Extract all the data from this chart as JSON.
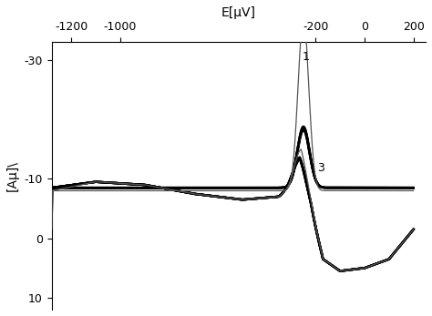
{
  "xlabel": "E[μV]",
  "ylabel": "[Aμ]\\",
  "x_top_ticks": [
    -1200,
    -1000,
    -200,
    0,
    200
  ],
  "x_top_labels": [
    "-1200",
    "-1000",
    "-200",
    "0",
    "200"
  ],
  "y_ticks": [
    -30,
    -10,
    0,
    10
  ],
  "y_labels": [
    "-30",
    "-10",
    "0",
    "10"
  ],
  "xlim_left": -1280,
  "xlim_right": 250,
  "ylim_bottom": 12,
  "ylim_top": -33,
  "bg_color": "#ffffff",
  "thin_color": "#555555",
  "thick_color": "#000000",
  "ann1_x": -255,
  "ann1_y": -29.5,
  "ann1_text": "1",
  "ann3_x": -195,
  "ann3_y": -10.8,
  "ann3_text": "3",
  "thin_lw": 0.9,
  "thick_lw": 1.8
}
